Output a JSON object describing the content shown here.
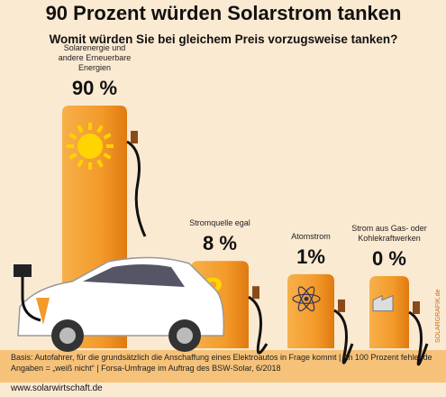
{
  "chart_data": {
    "type": "bar",
    "title": "90 Prozent würden Solarstrom tanken",
    "subtitle": "Womit würden Sie bei gleichem Preis vorzugsweise tanken?",
    "categories": [
      "Solarenergie und andere Erneuerbare Energien",
      "Stromquelle egal",
      "Atomstrom",
      "Strom aus Gas- oder Kohlekraftwerken"
    ],
    "values": [
      90,
      8,
      1,
      0
    ],
    "value_labels": [
      "90 %",
      "8 %",
      "1%",
      "0 %"
    ],
    "color": "#f39a2a",
    "note": "Basis: Autofahrer, für die grundsätzlich die Anschaffung eines Elektroautos in Frage kommt | An 100 Prozent fehlende Angaben = „weiß nicht“ | Forsa-Umfrage im Auftrag des BSW-Solar, 6/2018",
    "source": "www.solarwirtschaft.de",
    "watermark": "SOLARGRAFIK.de"
  }
}
